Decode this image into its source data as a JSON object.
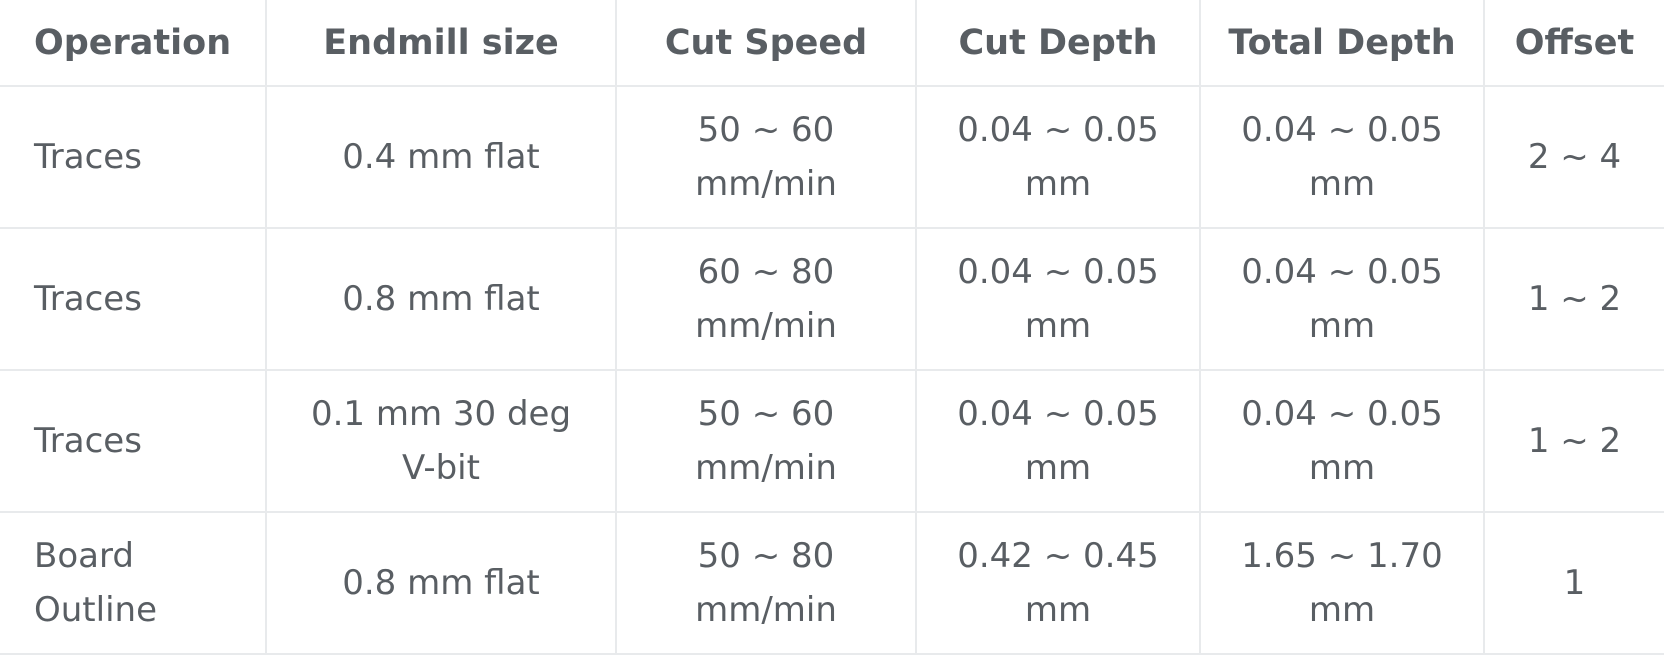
{
  "table": {
    "headers": [
      "Operation",
      "Endmill size",
      "Cut Speed",
      "Cut Depth",
      "Total Depth",
      "Offset"
    ],
    "rows": [
      {
        "operation": [
          "Traces"
        ],
        "endmill": [
          "0.4 mm flat"
        ],
        "cut_speed": [
          "50 ~ 60",
          "mm/min"
        ],
        "cut_depth": [
          "0.04 ~ 0.05",
          "mm"
        ],
        "total_depth": [
          "0.04 ~ 0.05",
          "mm"
        ],
        "offset": [
          "2 ~ 4"
        ]
      },
      {
        "operation": [
          "Traces"
        ],
        "endmill": [
          "0.8 mm flat"
        ],
        "cut_speed": [
          "60 ~ 80",
          "mm/min"
        ],
        "cut_depth": [
          "0.04 ~ 0.05",
          "mm"
        ],
        "total_depth": [
          "0.04 ~ 0.05",
          "mm"
        ],
        "offset": [
          "1 ~ 2"
        ]
      },
      {
        "operation": [
          "Traces"
        ],
        "endmill": [
          "0.1 mm 30 deg",
          "V-bit"
        ],
        "cut_speed": [
          "50 ~ 60",
          "mm/min"
        ],
        "cut_depth": [
          "0.04 ~ 0.05",
          "mm"
        ],
        "total_depth": [
          "0.04 ~ 0.05",
          "mm"
        ],
        "offset": [
          "1 ~ 2"
        ]
      },
      {
        "operation": [
          "Board",
          "Outline"
        ],
        "endmill": [
          "0.8 mm flat"
        ],
        "cut_speed": [
          "50 ~ 80",
          "mm/min"
        ],
        "cut_depth": [
          "0.42 ~ 0.45",
          "mm"
        ],
        "total_depth": [
          "1.65 ~ 1.70",
          "mm"
        ],
        "offset": [
          "1"
        ]
      }
    ]
  }
}
